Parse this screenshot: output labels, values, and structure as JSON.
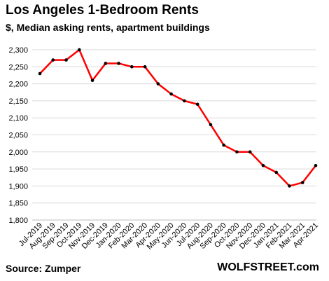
{
  "header": {
    "title": "Los Angeles 1-Bedroom Rents",
    "subtitle": "$, Median asking rents, apartment buildings"
  },
  "footer": {
    "source": "Source: Zumper",
    "brand": "WOLFSTREET.com"
  },
  "chart_data": {
    "type": "line",
    "title": "Los Angeles 1-Bedroom Rents",
    "subtitle": "$, Median asking rents, apartment buildings",
    "categories": [
      "Jul-2019",
      "Aug-2019",
      "Sep-2019",
      "Oct-2019",
      "Nov-2019",
      "Dec-2019",
      "Jan-2020",
      "Feb-2020",
      "Mar-2020",
      "Apr-2020",
      "May-2020",
      "Jun-2020",
      "Jul-2020",
      "Aug-2020",
      "Sep-2020",
      "Oct-2020",
      "Nov-2020",
      "Dec-2020",
      "Jan-2021",
      "Feb-2021",
      "Mar-2021",
      "Apr-2021"
    ],
    "series": [
      {
        "values": [
          2230,
          2270,
          2270,
          2300,
          2210,
          2260,
          2260,
          2250,
          2250,
          2200,
          2170,
          2150,
          2140,
          2080,
          2020,
          2000,
          2000,
          1960,
          1940,
          1900,
          1910,
          1960
        ]
      }
    ],
    "ylim": [
      1800,
      2300
    ],
    "yticks": [
      1800,
      1850,
      1900,
      1950,
      2000,
      2050,
      2100,
      2150,
      2200,
      2250,
      2300
    ],
    "ytick_labels": [
      "1,800",
      "1,850",
      "1,900",
      "1,950",
      "2,000",
      "2,050",
      "2,100",
      "2,150",
      "2,200",
      "2,250",
      "2,300"
    ],
    "grid": "horizontal",
    "line_color": "#ff0000",
    "marker_color": "#000000",
    "grid_color": "#d9d9d9"
  }
}
